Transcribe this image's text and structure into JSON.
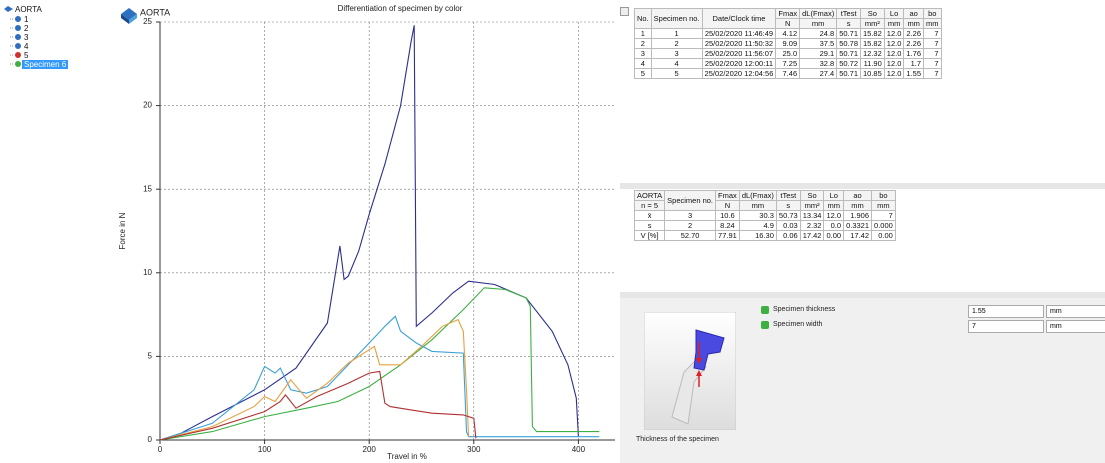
{
  "tree": {
    "root": "AORTA",
    "items": [
      "1",
      "2",
      "3",
      "4",
      "5",
      "Specimen 6"
    ]
  },
  "chart_header": "AORTA",
  "chart_data": {
    "type": "line",
    "title": "Differentiation of specimen by color",
    "x_label": "Travel in %",
    "y_label": "Force in N",
    "xlim": [
      0,
      435
    ],
    "ylim": [
      0,
      25
    ],
    "xticks": [
      0,
      100,
      200,
      300,
      400
    ],
    "yticks": [
      0,
      5,
      10,
      15,
      20,
      25
    ],
    "grid": true,
    "series": [
      {
        "color": "#2b2f8f",
        "x": [
          0,
          20,
          50,
          100,
          130,
          160,
          172,
          176,
          180,
          190,
          200,
          215,
          230,
          240,
          243,
          245,
          260,
          280,
          295,
          320,
          350,
          375,
          390,
          398,
          400
        ],
        "values": [
          0,
          0.4,
          1.4,
          3.0,
          4.3,
          7.0,
          11.6,
          9.6,
          9.8,
          11.3,
          13.5,
          16.5,
          20.0,
          23.8,
          24.8,
          6.8,
          7.6,
          8.8,
          9.5,
          9.3,
          8.5,
          6.5,
          4.5,
          2.5,
          0.2
        ]
      },
      {
        "color": "#3cb043",
        "x": [
          0,
          50,
          100,
          140,
          170,
          200,
          230,
          260,
          290,
          310,
          330,
          350,
          354,
          356,
          360,
          420
        ],
        "values": [
          0,
          0.5,
          1.4,
          1.9,
          2.3,
          3.2,
          4.5,
          6.0,
          7.8,
          9.1,
          9.0,
          8.5,
          8.0,
          0.8,
          0.5,
          0.5
        ]
      },
      {
        "color": "#3ba0d8",
        "x": [
          0,
          50,
          90,
          100,
          110,
          115,
          125,
          140,
          160,
          180,
          200,
          215,
          225,
          230,
          245,
          260,
          290,
          293,
          295,
          420
        ],
        "values": [
          0,
          1.0,
          3.0,
          4.4,
          4.0,
          4.3,
          3.0,
          2.8,
          3.2,
          4.5,
          5.8,
          6.8,
          7.4,
          6.5,
          5.8,
          5.3,
          5.2,
          0.5,
          0.2,
          0.2
        ]
      },
      {
        "color": "#e8a040",
        "x": [
          0,
          50,
          90,
          100,
          110,
          125,
          140,
          160,
          180,
          200,
          205,
          210,
          230,
          250,
          270,
          285,
          290,
          293,
          295
        ],
        "values": [
          0,
          0.8,
          2.0,
          2.6,
          2.3,
          3.6,
          2.5,
          3.4,
          4.6,
          5.4,
          5.6,
          4.5,
          4.5,
          5.6,
          6.8,
          7.2,
          6.5,
          3.0,
          0.2
        ]
      },
      {
        "color": "#b03030",
        "x": [
          0,
          50,
          100,
          115,
          120,
          130,
          150,
          180,
          200,
          210,
          215,
          220,
          240,
          260,
          290,
          300,
          302
        ],
        "values": [
          0,
          0.7,
          1.7,
          2.3,
          2.7,
          1.9,
          2.6,
          3.4,
          4.0,
          4.1,
          2.2,
          2.0,
          1.8,
          1.6,
          1.5,
          1.3,
          0.1
        ]
      }
    ]
  },
  "results_table": {
    "columns": [
      {
        "label": "No."
      },
      {
        "label": "Specimen no."
      },
      {
        "label": "Date/Clock time"
      },
      {
        "label": "Fmax",
        "unit": "N"
      },
      {
        "label": "dL(Fmax)",
        "unit": "mm"
      },
      {
        "label": "tTest",
        "unit": "s"
      },
      {
        "label": "So",
        "unit": "mm²"
      },
      {
        "label": "Lo",
        "unit": "mm"
      },
      {
        "label": "ao",
        "unit": "mm"
      },
      {
        "label": "bo",
        "unit": "mm"
      }
    ],
    "rows": [
      [
        "1",
        "1",
        "25/02/2020 11:46:49",
        "4.12",
        "24.8",
        "50.71",
        "15.82",
        "12.0",
        "2.26",
        "7"
      ],
      [
        "2",
        "2",
        "25/02/2020 11:50:32",
        "9.09",
        "37.5",
        "50.78",
        "15.82",
        "12.0",
        "2.26",
        "7"
      ],
      [
        "3",
        "3",
        "25/02/2020 11:56:07",
        "25.0",
        "29.1",
        "50.71",
        "12.32",
        "12.0",
        "1.76",
        "7"
      ],
      [
        "4",
        "4",
        "25/02/2020 12:00:11",
        "7.25",
        "32.8",
        "50.72",
        "11.90",
        "12.0",
        "1.7",
        "7"
      ],
      [
        "5",
        "5",
        "25/02/2020 12:04:56",
        "7.46",
        "27.4",
        "50.71",
        "10.85",
        "12.0",
        "1.55",
        "7"
      ]
    ]
  },
  "stats_table": {
    "columns": [
      {
        "label": "AORTA",
        "unit": "n = 5"
      },
      {
        "label": "Specimen no."
      },
      {
        "label": "Fmax",
        "unit": "N"
      },
      {
        "label": "dL(Fmax)",
        "unit": "mm"
      },
      {
        "label": "tTest",
        "unit": "s"
      },
      {
        "label": "So",
        "unit": "mm²"
      },
      {
        "label": "Lo",
        "unit": "mm"
      },
      {
        "label": "ao",
        "unit": "mm"
      },
      {
        "label": "bo",
        "unit": "mm"
      }
    ],
    "rows": [
      [
        "x̄",
        "3",
        "10.6",
        "30.3",
        "50.73",
        "13.34",
        "12.0",
        "1.906",
        "7"
      ],
      [
        "s",
        "2",
        "8.24",
        "4.9",
        "0.03",
        "2.32",
        "0.0",
        "0.3321",
        "0.000"
      ],
      [
        "V [%]",
        "52.70",
        "77.91",
        "16.30",
        "0.06",
        "17.42",
        "0.00",
        "17.42",
        "0.00"
      ]
    ]
  },
  "parameters": [
    {
      "label": "Specimen thickness",
      "value": "1.55",
      "unit": "mm"
    },
    {
      "label": "Specimen width",
      "value": "7",
      "unit": "mm"
    }
  ],
  "image_caption": "Thickness of the specimen"
}
